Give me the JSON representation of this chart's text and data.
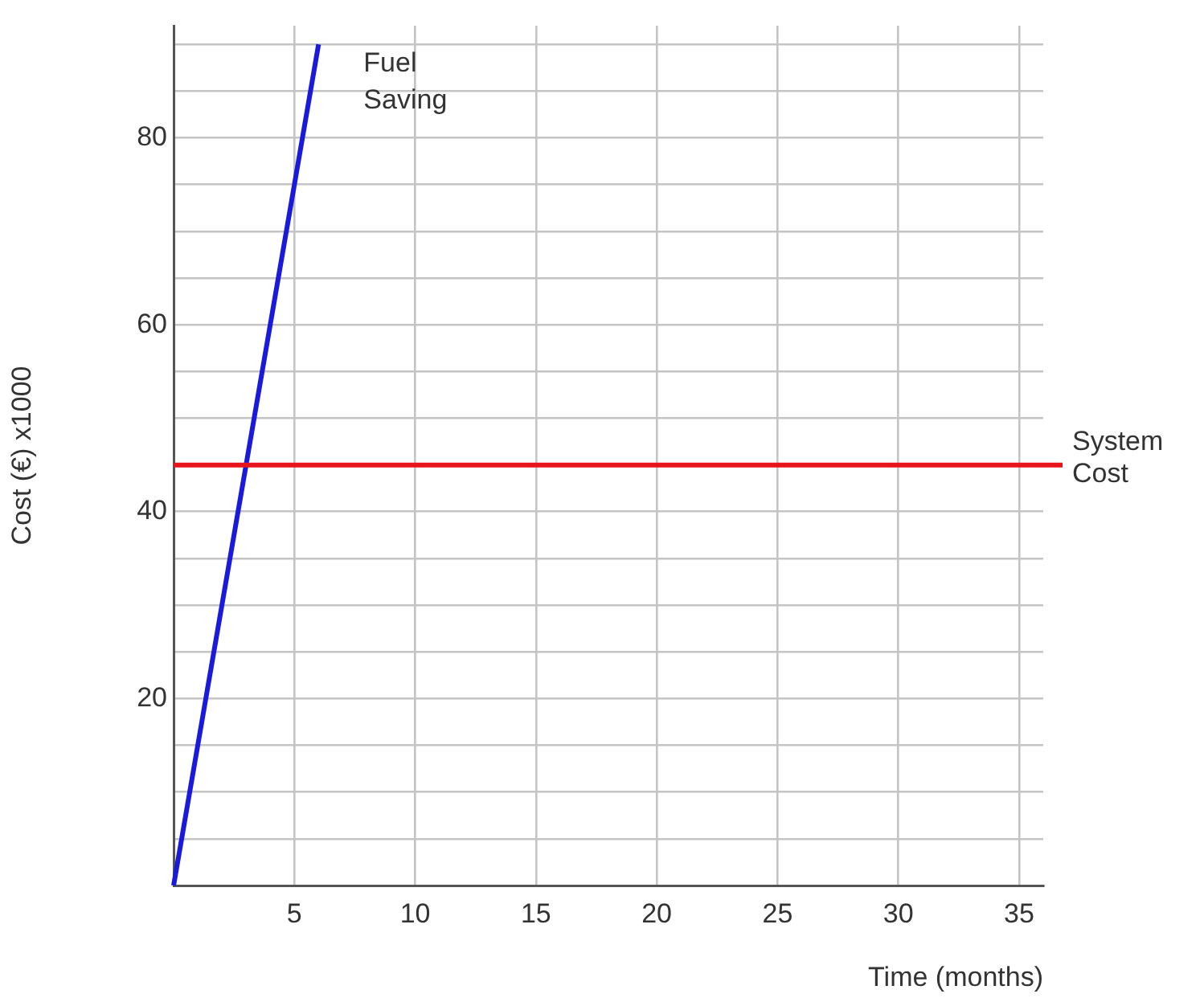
{
  "chart_data": {
    "type": "line",
    "xlabel": "Time (months)",
    "ylabel": "Cost (€) x1000",
    "series": [
      {
        "name": "Fuel Saving",
        "color": "#1a1adb",
        "x": [
          0,
          6
        ],
        "values": [
          0,
          90
        ]
      }
    ],
    "ref_lines": [
      {
        "axis": "y",
        "value": 45,
        "label": "System Cost",
        "color": "#e8141b"
      }
    ],
    "xlim": [
      0,
      36
    ],
    "xticks": [
      {
        "value": 0,
        "label": null
      },
      5,
      10,
      15,
      20,
      25,
      30,
      35
    ],
    "ylim": [
      0,
      92
    ],
    "yticks": [
      {
        "value": 0,
        "label": null
      },
      {
        "value": 5,
        "label": null
      },
      {
        "value": 10,
        "label": null
      },
      {
        "value": 15,
        "label": null
      },
      20,
      {
        "value": 25,
        "label": null
      },
      {
        "value": 30,
        "label": null
      },
      {
        "value": 35,
        "label": null
      },
      40,
      {
        "value": 45,
        "label": null
      },
      {
        "value": 50,
        "label": null
      },
      {
        "value": 55,
        "label": null
      },
      60,
      {
        "value": 65,
        "label": null
      },
      {
        "value": 70,
        "label": null
      },
      {
        "value": 75,
        "label": null
      },
      80,
      {
        "value": 85,
        "label": null
      },
      {
        "value": 90,
        "label": null
      }
    ],
    "grid": true,
    "legend": false,
    "marker": "none",
    "line_style": "solid"
  }
}
